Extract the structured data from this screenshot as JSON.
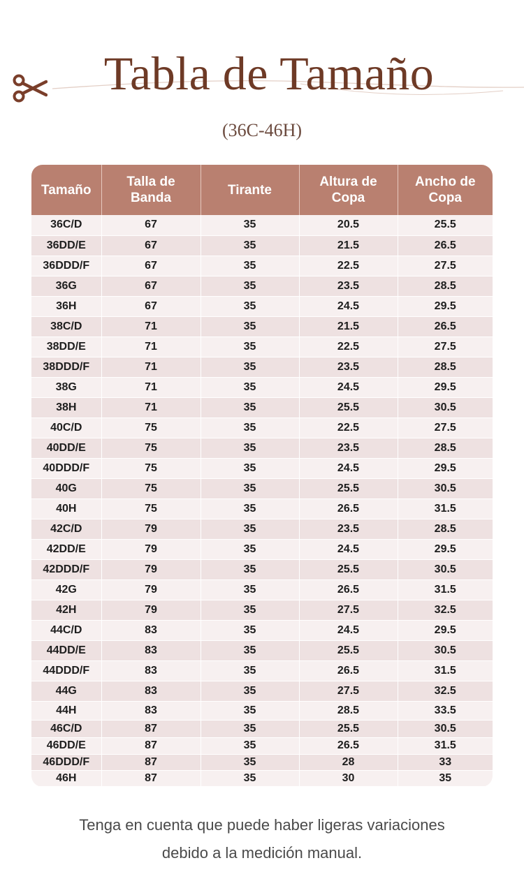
{
  "header": {
    "title": "Tabla de Tamaño",
    "subtitle": "(36C-46H)"
  },
  "table": {
    "columns": [
      "Tamaño",
      "Talla de Banda",
      "Tirante",
      "Altura de Copa",
      "Ancho de Copa"
    ],
    "rows": [
      [
        "36C/D",
        "67",
        "35",
        "20.5",
        "25.5"
      ],
      [
        "36DD/E",
        "67",
        "35",
        "21.5",
        "26.5"
      ],
      [
        "36DDD/F",
        "67",
        "35",
        "22.5",
        "27.5"
      ],
      [
        "36G",
        "67",
        "35",
        "23.5",
        "28.5"
      ],
      [
        "36H",
        "67",
        "35",
        "24.5",
        "29.5"
      ],
      [
        "38C/D",
        "71",
        "35",
        "21.5",
        "26.5"
      ],
      [
        "38DD/E",
        "71",
        "35",
        "22.5",
        "27.5"
      ],
      [
        "38DDD/F",
        "71",
        "35",
        "23.5",
        "28.5"
      ],
      [
        "38G",
        "71",
        "35",
        "24.5",
        "29.5"
      ],
      [
        "38H",
        "71",
        "35",
        "25.5",
        "30.5"
      ],
      [
        "40C/D",
        "75",
        "35",
        "22.5",
        "27.5"
      ],
      [
        "40DD/E",
        "75",
        "35",
        "23.5",
        "28.5"
      ],
      [
        "40DDD/F",
        "75",
        "35",
        "24.5",
        "29.5"
      ],
      [
        "40G",
        "75",
        "35",
        "25.5",
        "30.5"
      ],
      [
        "40H",
        "75",
        "35",
        "26.5",
        "31.5"
      ],
      [
        "42C/D",
        "79",
        "35",
        "23.5",
        "28.5"
      ],
      [
        "42DD/E",
        "79",
        "35",
        "24.5",
        "29.5"
      ],
      [
        "42DDD/F",
        "79",
        "35",
        "25.5",
        "30.5"
      ],
      [
        "42G",
        "79",
        "35",
        "26.5",
        "31.5"
      ],
      [
        "42H",
        "79",
        "35",
        "27.5",
        "32.5"
      ],
      [
        "44C/D",
        "83",
        "35",
        "24.5",
        "29.5"
      ],
      [
        "44DD/E",
        "83",
        "35",
        "25.5",
        "30.5"
      ],
      [
        "44DDD/F",
        "83",
        "35",
        "26.5",
        "31.5"
      ],
      [
        "44G",
        "83",
        "35",
        "27.5",
        "32.5"
      ],
      [
        "44H",
        "83",
        "35",
        "28.5",
        "33.5"
      ],
      [
        "46C/D",
        "87",
        "35",
        "25.5",
        "30.5"
      ],
      [
        "46DD/E",
        "87",
        "35",
        "26.5",
        "31.5"
      ],
      [
        "46DDD/F",
        "87",
        "35",
        "28",
        "33"
      ],
      [
        "46H",
        "87",
        "35",
        "30",
        "35"
      ]
    ]
  },
  "note": {
    "line1": "Tenga en cuenta que puede haber ligeras variaciones",
    "line2": "debido a la medición manual."
  },
  "colors": {
    "title": "#6e3a26",
    "header_bg": "#b98070",
    "row_light": "#f7f0f0",
    "row_dark": "#eee1e1"
  },
  "icons": [
    "scissors-icon"
  ]
}
